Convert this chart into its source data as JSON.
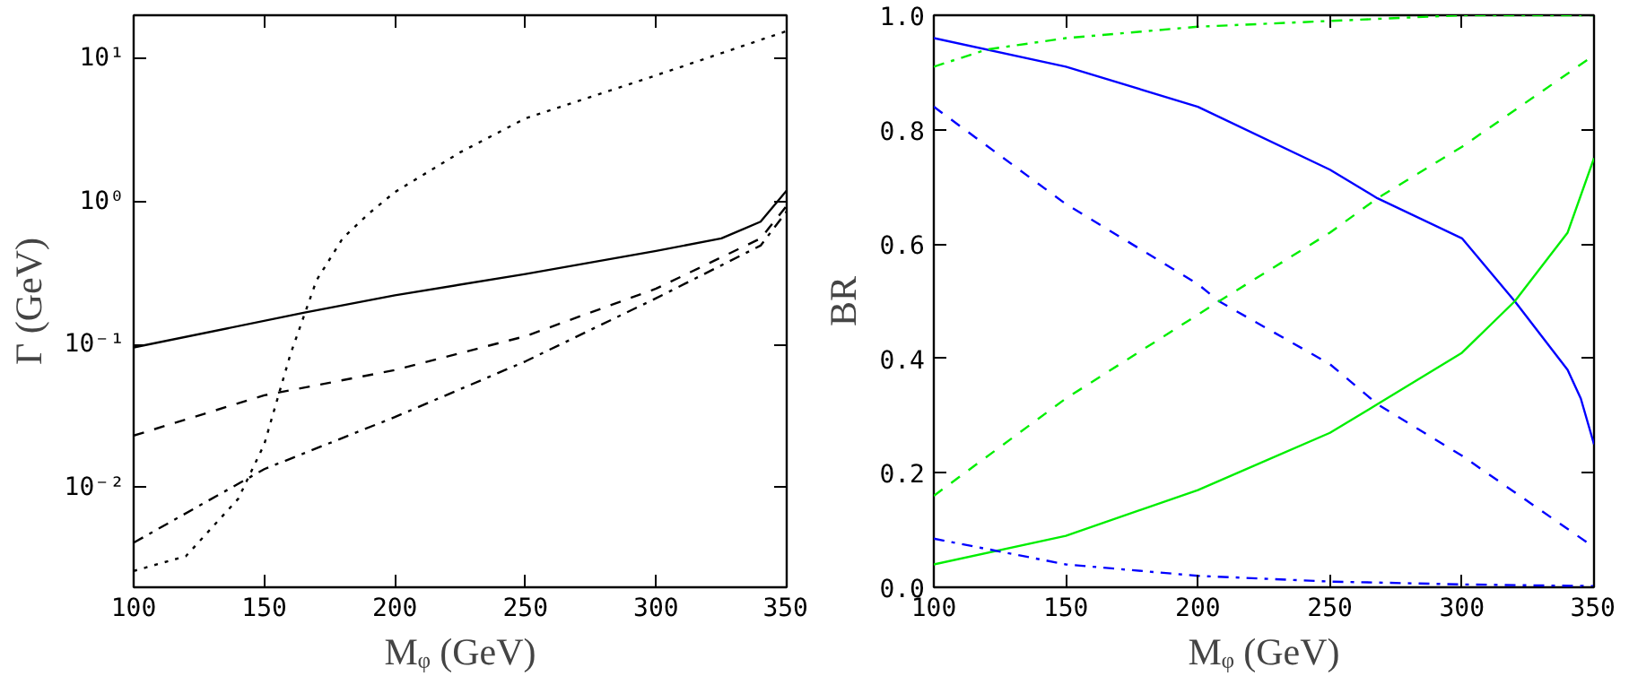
{
  "chart_data": [
    {
      "type": "line",
      "xlabel": "Mᵩ (GeV)",
      "ylabel": "Γ (GeV)",
      "log": "y",
      "grid": false,
      "xlim": [
        100,
        350
      ],
      "xticks": [
        100,
        150,
        200,
        250,
        300,
        350
      ],
      "ylim": [
        0.002,
        20
      ],
      "yticks": [
        {
          "value": 0.01,
          "label": "10⁻²"
        },
        {
          "value": 0.1,
          "label": "10⁻¹"
        },
        {
          "value": 1,
          "label": "10⁰"
        },
        {
          "value": 10,
          "label": "10¹"
        }
      ],
      "series": [
        {
          "color": "#000000",
          "line_style": "solid",
          "x": [
            100,
            165,
            200,
            250,
            300,
            325,
            340,
            350
          ],
          "values": [
            0.095,
            0.166,
            0.22,
            0.31,
            0.45,
            0.55,
            0.72,
            1.19
          ]
        },
        {
          "color": "#000000",
          "line_style": "dashed",
          "x": [
            100,
            150,
            200,
            250,
            300,
            340,
            350
          ],
          "values": [
            0.023,
            0.044,
            0.066,
            0.114,
            0.245,
            0.55,
            0.93
          ]
        },
        {
          "color": "#000000",
          "line_style": "dashdot",
          "x": [
            100,
            150,
            200,
            250,
            300,
            340,
            350
          ],
          "values": [
            0.0041,
            0.0134,
            0.031,
            0.076,
            0.21,
            0.49,
            0.85
          ]
        },
        {
          "color": "#000000",
          "line_style": "dotted",
          "x": [
            100,
            120,
            140,
            150,
            160,
            170,
            180,
            190,
            200,
            225,
            250,
            300,
            350
          ],
          "values": [
            0.0026,
            0.0033,
            0.0083,
            0.02,
            0.085,
            0.28,
            0.55,
            0.82,
            1.16,
            2.2,
            3.8,
            7.6,
            15.5
          ]
        }
      ]
    },
    {
      "type": "line",
      "xlabel": "Mᵩ (GeV)",
      "ylabel": "BR",
      "grid": false,
      "xlim": [
        100,
        350
      ],
      "xticks": [
        100,
        150,
        200,
        250,
        300,
        350
      ],
      "ylim": [
        0,
        1
      ],
      "yticks": [
        {
          "value": 0,
          "label": "0.0"
        },
        {
          "value": 0.2,
          "label": "0.2"
        },
        {
          "value": 0.4,
          "label": "0.4"
        },
        {
          "value": 0.6,
          "label": "0.6"
        },
        {
          "value": 0.8,
          "label": "0.8"
        },
        {
          "value": 1,
          "label": "1.0"
        }
      ],
      "series": [
        {
          "color": "#0000ff",
          "line_style": "solid",
          "x": [
            100,
            150,
            200,
            250,
            268,
            300,
            320,
            340,
            345,
            350
          ],
          "values": [
            0.96,
            0.91,
            0.84,
            0.73,
            0.68,
            0.61,
            0.5,
            0.38,
            0.33,
            0.25
          ]
        },
        {
          "color": "#00ee00",
          "line_style": "solid",
          "x": [
            100,
            150,
            200,
            250,
            268,
            300,
            320,
            340,
            350
          ],
          "values": [
            0.04,
            0.09,
            0.17,
            0.27,
            0.32,
            0.41,
            0.5,
            0.62,
            0.75
          ]
        },
        {
          "color": "#0000ff",
          "line_style": "dashed",
          "x": [
            100,
            150,
            200,
            208,
            250,
            268,
            300,
            350
          ],
          "values": [
            0.84,
            0.67,
            0.53,
            0.5,
            0.39,
            0.32,
            0.23,
            0.07
          ]
        },
        {
          "color": "#00ee00",
          "line_style": "dashed",
          "x": [
            100,
            150,
            208,
            250,
            268,
            300,
            350
          ],
          "values": [
            0.16,
            0.33,
            0.5,
            0.62,
            0.68,
            0.77,
            0.93
          ]
        },
        {
          "color": "#00ee00",
          "line_style": "dashdot",
          "x": [
            100,
            120,
            150,
            200,
            250,
            300,
            350
          ],
          "values": [
            0.91,
            0.94,
            0.96,
            0.98,
            0.99,
            1.0,
            1.0
          ]
        },
        {
          "color": "#0000ff",
          "line_style": "dashdot",
          "x": [
            100,
            150,
            200,
            250,
            300,
            350
          ],
          "values": [
            0.085,
            0.04,
            0.02,
            0.01,
            0.005,
            0.002
          ]
        }
      ]
    }
  ]
}
